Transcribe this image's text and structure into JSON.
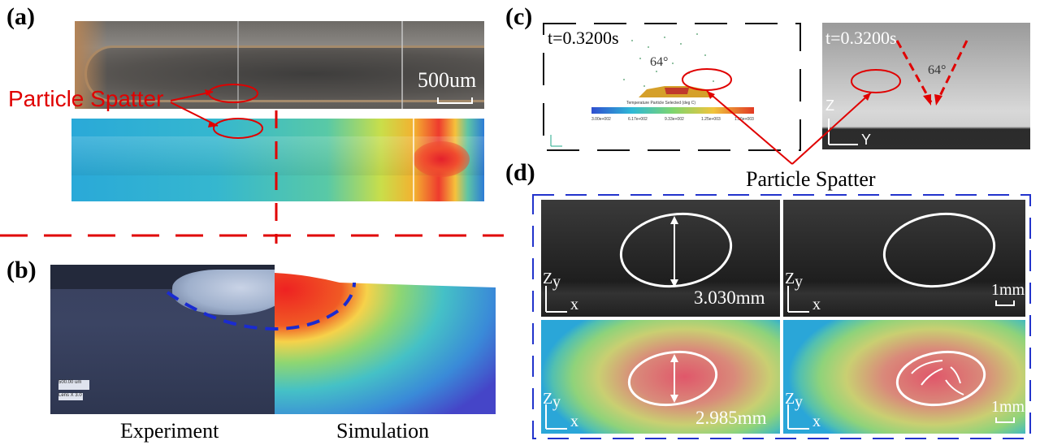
{
  "figure": {
    "labels": {
      "a": "(a)",
      "b": "(b)",
      "c": "(c)",
      "d": "(d)"
    },
    "panel_a": {
      "scale_bar": "500um",
      "spatter_label": "Particle Spatter"
    },
    "panel_b": {
      "left_caption": "Experiment",
      "right_caption": "Simulation",
      "scale_text": "500.00 um",
      "mag_text": "Lens X 3.0"
    },
    "panel_c": {
      "sim_time": "t=0.3200s",
      "exp_time": "t=0.3200s",
      "sim_angle": "64°",
      "exp_angle": "64°",
      "colorbar_title": "Temperature Particle Selected (deg C)",
      "colorbar_ticks": [
        "3.00e+002",
        "6.17e+002",
        "9.33e+002",
        "1.25e+003",
        "1.56e+003"
      ],
      "axis_z": "Z",
      "axis_y": "Y",
      "spatter_label": "Particle Spatter"
    },
    "panel_d": {
      "exp_measure": "3.030mm",
      "sim_measure": "2.985mm",
      "scale_bar_top": "1mm",
      "scale_bar_bottom": "1mm",
      "axis_z": "Z",
      "axis_y": "y",
      "axis_x": "x"
    }
  },
  "colors": {
    "annotation_red": "#e00000",
    "dashed_blue": "#2233cc",
    "melt_red": "#ee2222"
  }
}
